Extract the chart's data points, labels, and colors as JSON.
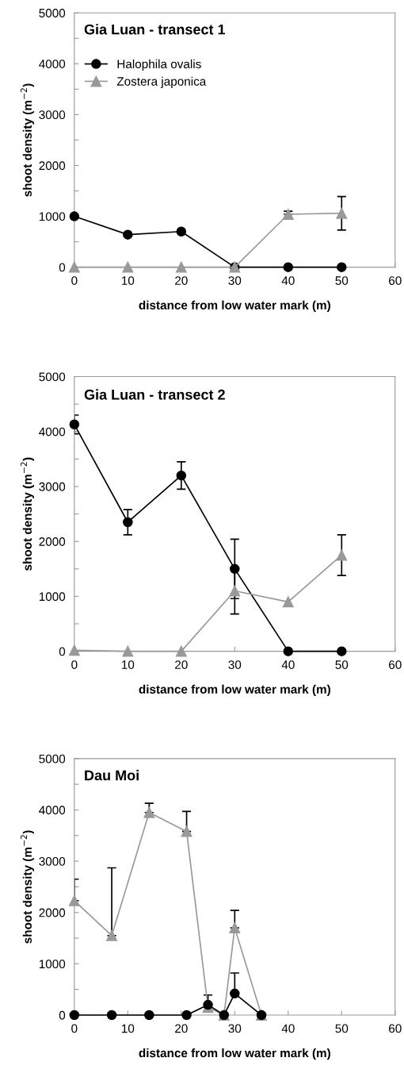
{
  "chart_data": [
    {
      "type": "line",
      "title": "Gia Luan - transect 1",
      "xlabel": "distance from low water mark (m)",
      "ylabel": "shoot density (m$^{−2}$)",
      "x": [
        0,
        10,
        20,
        30,
        40,
        50
      ],
      "xlim": [
        0,
        60
      ],
      "xticks": [
        0,
        10,
        20,
        30,
        40,
        50,
        60
      ],
      "ylim": [
        0,
        5000
      ],
      "yticks": [
        0,
        {
          "value": 500,
          "label": null
        },
        1000,
        {
          "value": 1500,
          "label": null
        },
        2000,
        {
          "value": 2500,
          "label": null
        },
        3000,
        {
          "value": 3500,
          "label": null
        },
        4000,
        {
          "value": 4500,
          "label": null
        },
        5000
      ],
      "legend": "top left",
      "grid": false,
      "series": [
        {
          "name": "Halophila ovalis",
          "color": "#000000",
          "marker": "circle",
          "values": [
            1000,
            640,
            700,
            0,
            0,
            0
          ]
        },
        {
          "name": "Zostera japonica",
          "color": "#999999",
          "marker": "triangle",
          "values": [
            0,
            0,
            0,
            0,
            1040,
            1060
          ],
          "errors": [
            null,
            null,
            null,
            null,
            [
              1040,
              1100
            ],
            330
          ]
        }
      ]
    },
    {
      "type": "line",
      "title": "Gia Luan - transect 2",
      "xlabel": "distance from low water mark (m)",
      "ylabel": "shoot density (m$^{−2}$)",
      "x": [
        0,
        10,
        20,
        30,
        40,
        50
      ],
      "xlim": [
        0,
        60
      ],
      "xticks": [
        0,
        10,
        20,
        30,
        40,
        50,
        60
      ],
      "ylim": [
        0,
        5000
      ],
      "yticks": [
        0,
        {
          "value": 500,
          "label": null
        },
        1000,
        {
          "value": 1500,
          "label": null
        },
        2000,
        {
          "value": 2500,
          "label": null
        },
        3000,
        {
          "value": 3500,
          "label": null
        },
        4000,
        {
          "value": 4500,
          "label": null
        },
        5000
      ],
      "grid": false,
      "series": [
        {
          "color": "#000000",
          "marker": "circle",
          "values": [
            4130,
            2350,
            3200,
            1500,
            0,
            0
          ],
          "errors": [
            170,
            230,
            250,
            540,
            null,
            null
          ]
        },
        {
          "color": "#999999",
          "marker": "triangle",
          "values": [
            20,
            0,
            0,
            1100,
            900,
            1750
          ],
          "errors": [
            null,
            null,
            null,
            420,
            null,
            370
          ]
        }
      ]
    },
    {
      "type": "line",
      "title": "Dau Moi",
      "xlabel": "distance from low water mark (m)",
      "ylabel": "shoot density (m$^{−2}$)",
      "x": [
        0,
        7,
        14,
        21,
        25,
        28,
        30,
        35
      ],
      "xlim": [
        0,
        60
      ],
      "xticks": [
        0,
        10,
        20,
        30,
        40,
        50,
        60
      ],
      "ylim": [
        0,
        5000
      ],
      "yticks": [
        0,
        {
          "value": 500,
          "label": null
        },
        1000,
        {
          "value": 1500,
          "label": null
        },
        2000,
        {
          "value": 2500,
          "label": null
        },
        3000,
        {
          "value": 3500,
          "label": null
        },
        4000,
        {
          "value": 4500,
          "label": null
        },
        5000
      ],
      "grid": false,
      "series": [
        {
          "color": "#999999",
          "marker": "triangle",
          "values": [
            2230,
            1550,
            3950,
            3580,
            150,
            0,
            1700,
            0
          ],
          "errors": [
            [
              2230,
              2650
            ],
            [
              1550,
              2870
            ],
            [
              3950,
              4130
            ],
            [
              3580,
              3970
            ],
            [
              150,
              390
            ],
            null,
            [
              1700,
              2040
            ],
            null
          ]
        },
        {
          "color": "#000000",
          "marker": "circle",
          "values": [
            0,
            0,
            0,
            0,
            200,
            0,
            420,
            0
          ],
          "errors": [
            null,
            null,
            null,
            null,
            null,
            null,
            [
              420,
              820
            ],
            null
          ]
        }
      ]
    }
  ]
}
